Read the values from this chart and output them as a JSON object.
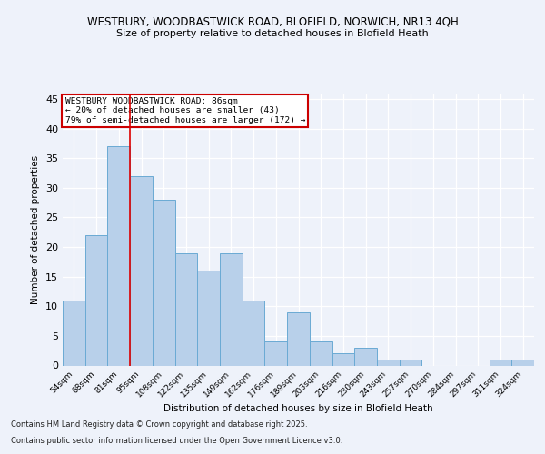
{
  "title1": "WESTBURY, WOODBASTWICK ROAD, BLOFIELD, NORWICH, NR13 4QH",
  "title2": "Size of property relative to detached houses in Blofield Heath",
  "xlabel": "Distribution of detached houses by size in Blofield Heath",
  "ylabel": "Number of detached properties",
  "categories": [
    "54sqm",
    "68sqm",
    "81sqm",
    "95sqm",
    "108sqm",
    "122sqm",
    "135sqm",
    "149sqm",
    "162sqm",
    "176sqm",
    "189sqm",
    "203sqm",
    "216sqm",
    "230sqm",
    "243sqm",
    "257sqm",
    "270sqm",
    "284sqm",
    "297sqm",
    "311sqm",
    "324sqm"
  ],
  "values": [
    11,
    22,
    37,
    32,
    28,
    19,
    16,
    19,
    11,
    4,
    9,
    4,
    2,
    3,
    1,
    1,
    0,
    0,
    0,
    1,
    1
  ],
  "bar_color": "#b8d0ea",
  "bar_edge_color": "#6aaad4",
  "vline_x": 2.5,
  "vline_color": "#dd0000",
  "annotation_text": "WESTBURY WOODBASTWICK ROAD: 86sqm\n← 20% of detached houses are smaller (43)\n79% of semi-detached houses are larger (172) →",
  "annotation_box_color": "#ffffff",
  "annotation_box_edge": "#cc0000",
  "ylim": [
    0,
    46
  ],
  "yticks": [
    0,
    5,
    10,
    15,
    20,
    25,
    30,
    35,
    40,
    45
  ],
  "footer1": "Contains HM Land Registry data © Crown copyright and database right 2025.",
  "footer2": "Contains public sector information licensed under the Open Government Licence v3.0.",
  "bg_color": "#eef2fa",
  "plot_bg_color": "#eef2fa"
}
